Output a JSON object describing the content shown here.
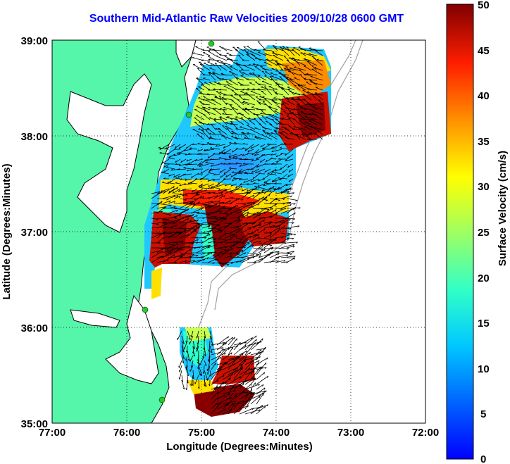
{
  "title": "Southern Mid-Atlantic Raw Velocities 2009/10/28 0600 GMT",
  "axes": {
    "xlabel": "Longitude (Degrees:Minutes)",
    "ylabel": "Latitude (Degrees:Minutes)",
    "x_ticks": [
      "77:00",
      "76:00",
      "75:00",
      "74:00",
      "73:00",
      "72:00"
    ],
    "y_ticks": [
      "39:00",
      "38:00",
      "37:00",
      "36:00",
      "35:00"
    ],
    "grid": "dotted"
  },
  "colorbar": {
    "label": "Surface Velocity (cm/s)",
    "ticks": [
      "50",
      "45",
      "40",
      "35",
      "30",
      "25",
      "20",
      "15",
      "10",
      "5",
      "0"
    ],
    "range": [
      0,
      50
    ],
    "colormap": "jet"
  },
  "colors": {
    "land": "#55f5aa",
    "coastline": "#000000",
    "bathymetry": "#a0a0a0",
    "title": "#0000ff",
    "station": "#22cc22"
  }
}
